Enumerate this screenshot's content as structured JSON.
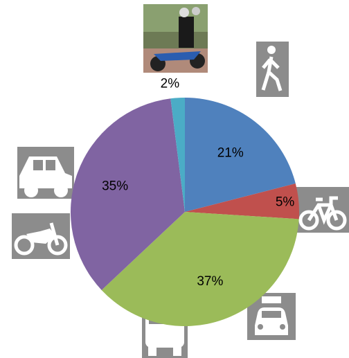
{
  "chart_data": {
    "type": "pie",
    "values": [
      21,
      5,
      37,
      35,
      2
    ],
    "value_labels": [
      "21%",
      "5%",
      "37%",
      "35%",
      "2%"
    ],
    "colors": [
      "#4f81bd",
      "#c0504d",
      "#9bbb59",
      "#8064a2",
      "#4bacc6"
    ]
  }
}
